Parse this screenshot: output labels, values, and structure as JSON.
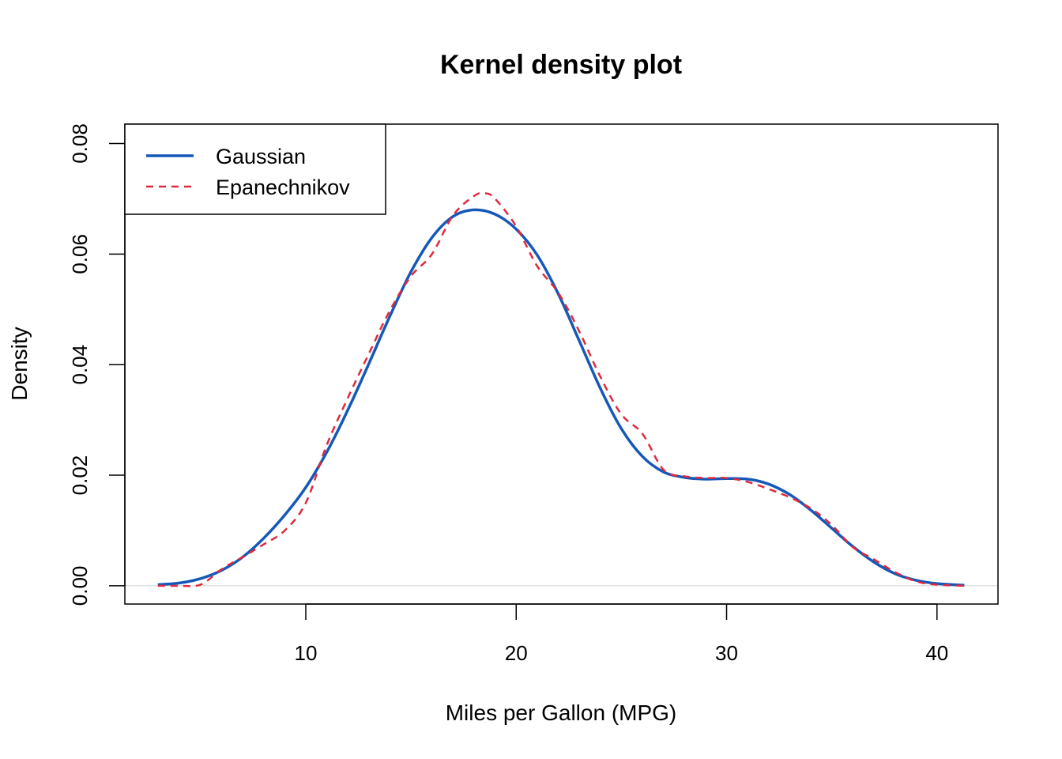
{
  "chart_data": {
    "type": "line",
    "title": "Kernel density plot",
    "xlabel": "Miles per Gallon (MPG)",
    "ylabel": "Density",
    "xlim": [
      1.4,
      42.9
    ],
    "ylim": [
      -0.0033,
      0.0835
    ],
    "x_ticks": [
      10,
      20,
      30,
      40
    ],
    "x_tick_labels": [
      "10",
      "20",
      "30",
      "40"
    ],
    "y_ticks": [
      0,
      0.02,
      0.04,
      0.06,
      0.08
    ],
    "y_tick_labels": [
      "0.00",
      "0.02",
      "0.04",
      "0.06",
      "0.08"
    ],
    "baseline": 0,
    "grid": false,
    "legend_position": "top-left",
    "series": [
      {
        "name": "Gaussian",
        "color": "#1558B8",
        "line_style": "solid",
        "x": [
          2.97,
          4,
          5,
          6,
          7,
          8,
          9,
          10,
          11,
          12,
          13,
          14,
          15,
          16,
          17,
          18,
          19,
          20,
          21,
          22,
          23,
          24,
          25,
          26,
          27,
          28,
          29,
          30,
          31,
          32,
          33,
          34,
          35,
          36,
          37,
          38,
          39,
          40,
          41.3
        ],
        "y": [
          0.0002,
          0.0005,
          0.0013,
          0.0028,
          0.0052,
          0.0086,
          0.0128,
          0.0178,
          0.0242,
          0.0318,
          0.0402,
          0.0488,
          0.0568,
          0.063,
          0.0668,
          0.068,
          0.0672,
          0.0645,
          0.0598,
          0.0528,
          0.0443,
          0.0357,
          0.0284,
          0.0234,
          0.0206,
          0.0196,
          0.0193,
          0.0194,
          0.0193,
          0.0184,
          0.0165,
          0.0137,
          0.0104,
          0.0071,
          0.0043,
          0.0022,
          0.001,
          0.0004,
          0.0001
        ]
      },
      {
        "name": "Epanechnikov",
        "color": "#DF2A3D",
        "line_style": "dashed",
        "x": [
          2.97,
          4,
          5,
          6,
          7,
          8,
          9,
          10,
          11,
          12,
          13,
          14,
          15,
          16,
          17,
          18,
          18.5,
          19,
          20,
          21,
          22,
          23,
          24,
          25,
          26,
          27,
          28,
          29,
          30,
          31,
          32,
          33,
          34,
          35,
          36,
          37,
          38,
          39,
          40,
          41.3
        ],
        "y": [
          0.0,
          0.0,
          0.0002,
          0.003,
          0.0052,
          0.0075,
          0.01,
          0.015,
          0.0255,
          0.034,
          0.042,
          0.0498,
          0.056,
          0.06,
          0.067,
          0.0705,
          0.071,
          0.07,
          0.065,
          0.0578,
          0.053,
          0.046,
          0.0378,
          0.031,
          0.0275,
          0.021,
          0.0198,
          0.0195,
          0.0195,
          0.0188,
          0.0175,
          0.016,
          0.014,
          0.011,
          0.007,
          0.0048,
          0.0025,
          0.0008,
          0.0002,
          0.0
        ]
      }
    ]
  }
}
